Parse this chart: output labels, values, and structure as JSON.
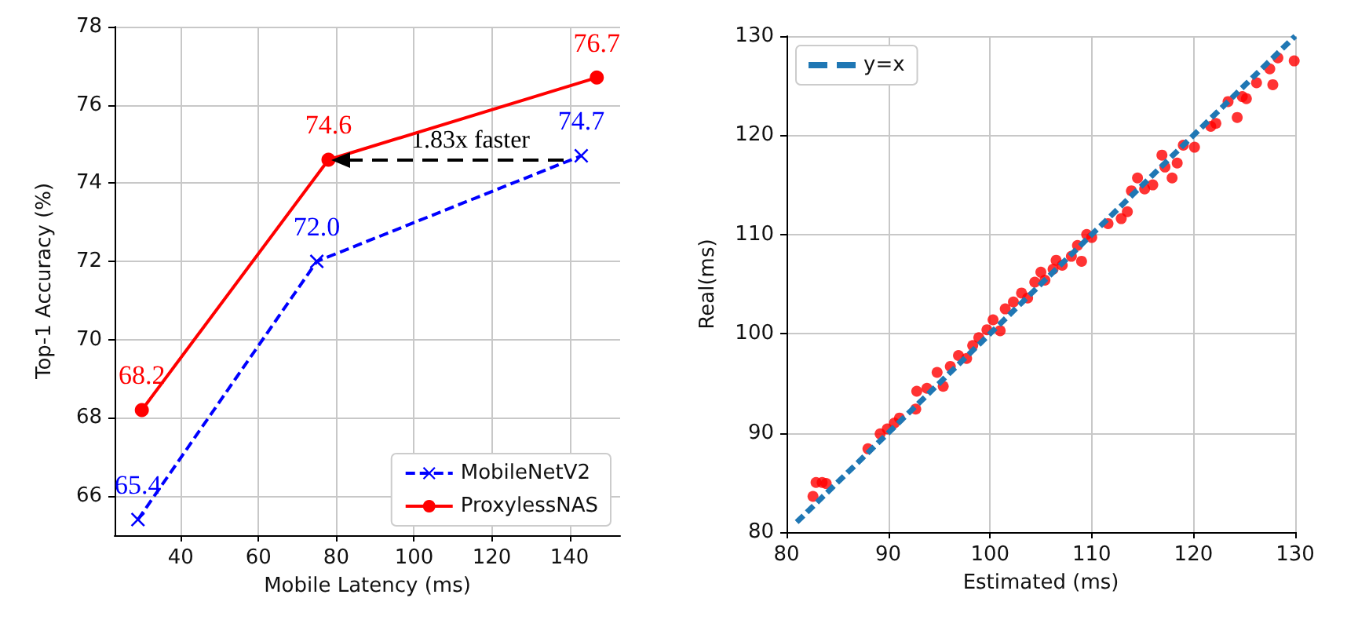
{
  "chart_data": [
    {
      "type": "line",
      "xlabel": "Mobile Latency (ms)",
      "ylabel": "Top-1 Accuracy (%)",
      "xlim": [
        23,
        153
      ],
      "xticks": [
        40,
        60,
        80,
        100,
        120,
        140
      ],
      "ylim": [
        65,
        78
      ],
      "yticks": [
        66,
        68,
        70,
        72,
        74,
        76,
        78
      ],
      "grid": true,
      "legend": "bottom right",
      "series": [
        {
          "name": "MobileNetV2",
          "color": "#0000ff",
          "marker": "cross",
          "line_style": "dashed",
          "x": [
            29,
            75,
            143
          ],
          "values": [
            65.4,
            72.0,
            74.7
          ],
          "value_labels": [
            "65.4",
            "72.0",
            "74.7"
          ]
        },
        {
          "name": "ProxylessNAS",
          "color": "#ff0000",
          "marker": "circle",
          "line_style": "solid",
          "x": [
            30,
            78,
            147
          ],
          "values": [
            68.2,
            74.6,
            76.7
          ],
          "value_labels": [
            "68.2",
            "74.6",
            "76.7"
          ]
        }
      ],
      "annotations": [
        "1.83x faster"
      ]
    },
    {
      "type": "scatter",
      "xlabel": "Estimated (ms)",
      "ylabel": "Real(ms)",
      "xlim": [
        80,
        130
      ],
      "xticks": [
        80,
        90,
        100,
        110,
        120,
        130
      ],
      "ylim": [
        80,
        130
      ],
      "yticks": [
        80,
        90,
        100,
        110,
        120,
        130
      ],
      "grid": true,
      "legend": "top left",
      "series": [
        {
          "type": "scatter",
          "color": "#ff0000",
          "marker": "circle",
          "x": [
            82.6,
            82.9,
            83.5,
            83.9,
            88.0,
            89.2,
            89.9,
            90.6,
            91.1,
            92.7,
            92.8,
            93.8,
            94.8,
            95.4,
            96.1,
            96.9,
            97.7,
            98.3,
            98.9,
            99.7,
            100.3,
            101.0,
            101.5,
            102.3,
            103.1,
            103.7,
            104.4,
            105.0,
            105.4,
            106.2,
            106.5,
            107.1,
            108.0,
            108.6,
            109.0,
            109.5,
            110.0,
            111.6,
            112.9,
            113.5,
            113.9,
            114.5,
            115.2,
            116.0,
            116.9,
            117.2,
            117.9,
            118.4,
            119.0,
            120.1,
            121.7,
            122.2,
            123.4,
            124.3,
            124.8,
            125.2,
            126.2,
            127.5,
            127.8,
            128.3,
            129.9
          ],
          "values": [
            83.6,
            85.0,
            85.0,
            84.9,
            88.4,
            89.9,
            90.4,
            91.0,
            91.5,
            92.4,
            94.2,
            94.5,
            96.1,
            94.7,
            96.7,
            97.8,
            97.5,
            98.8,
            99.6,
            100.4,
            101.4,
            100.3,
            102.5,
            103.2,
            104.1,
            103.6,
            105.2,
            106.2,
            105.4,
            106.5,
            107.4,
            106.9,
            107.8,
            108.9,
            107.3,
            110.0,
            109.7,
            111.1,
            111.6,
            112.3,
            114.4,
            115.7,
            114.6,
            115.0,
            118.0,
            116.8,
            115.7,
            117.2,
            119.0,
            118.8,
            120.9,
            121.2,
            123.4,
            121.8,
            123.9,
            123.7,
            125.3,
            126.7,
            125.1,
            127.8,
            127.5
          ]
        },
        {
          "type": "line",
          "name": "y=x",
          "color": "#1f77b4",
          "marker": "none",
          "line_style": "dashed",
          "x": [
            81,
            130
          ],
          "values": [
            81,
            130
          ]
        }
      ]
    }
  ]
}
